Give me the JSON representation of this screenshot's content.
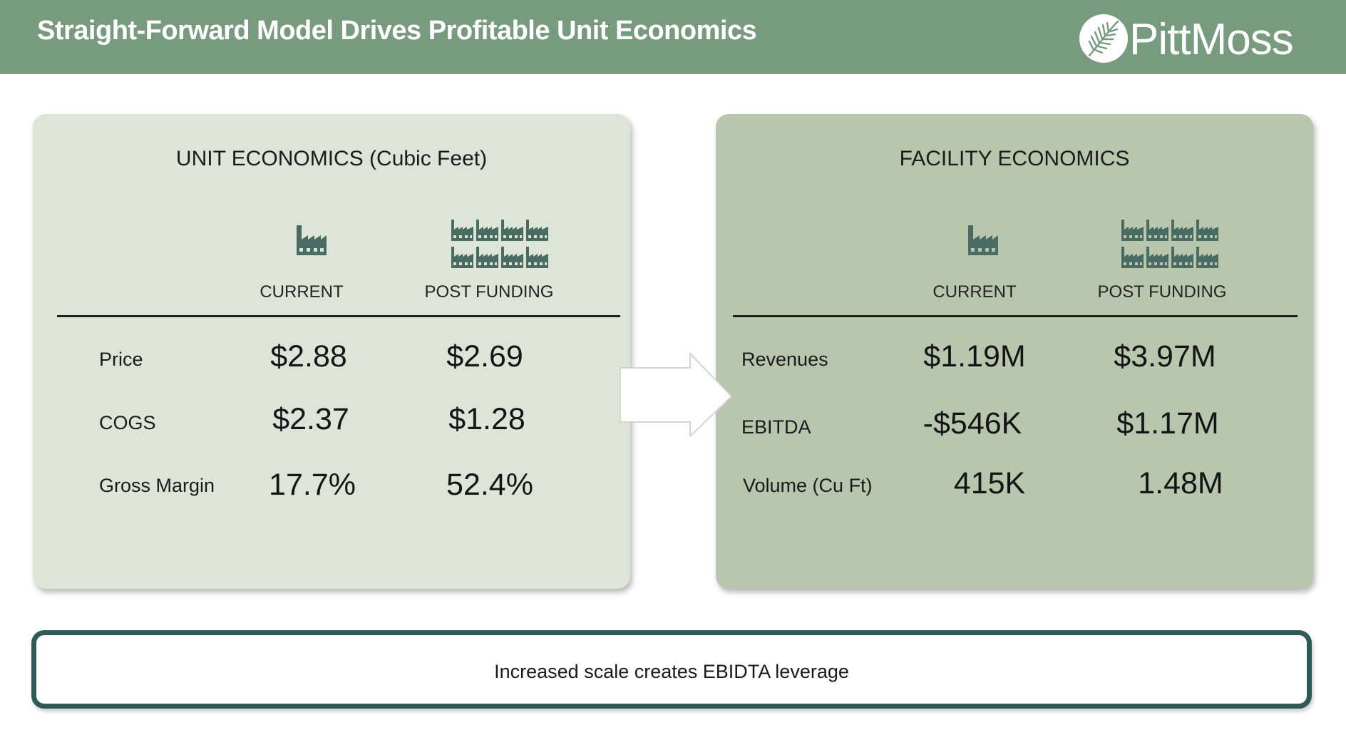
{
  "header": {
    "title": "Straight-Forward Model Drives Profitable Unit Economics",
    "brand": "PittMoss"
  },
  "colors": {
    "header_bg": "#789a7f",
    "left_panel_bg": "#dde5d9",
    "right_panel_bg": "#b7c6ad",
    "icon_color": "#4a6b62",
    "callout_border": "#2f5a57"
  },
  "unit_economics": {
    "title": "UNIT ECONOMICS (Cubic Feet)",
    "columns": [
      "CURRENT",
      "POST FUNDING"
    ],
    "column_icons": [
      "factory-icon",
      "factory-group-icon"
    ],
    "rows": [
      {
        "label": "Price",
        "current": "$2.88",
        "post": "$2.69"
      },
      {
        "label": "COGS",
        "current": "$2.37",
        "post": "$1.28"
      },
      {
        "label": "Gross Margin",
        "current": "17.7%",
        "post": "52.4%"
      }
    ]
  },
  "facility_economics": {
    "title": "FACILITY ECONOMICS",
    "columns": [
      "CURRENT",
      "POST FUNDING"
    ],
    "column_icons": [
      "factory-icon",
      "factory-group-icon"
    ],
    "rows": [
      {
        "label": "Revenues",
        "current": "$1.19M",
        "post": "$3.97M"
      },
      {
        "label": "EBITDA",
        "current": "-$546K",
        "post": "$1.17M"
      },
      {
        "label": "Volume (Cu Ft)",
        "current": "415K",
        "post": "1.48M"
      }
    ]
  },
  "callout": {
    "text": "Increased scale creates EBIDTA leverage"
  }
}
